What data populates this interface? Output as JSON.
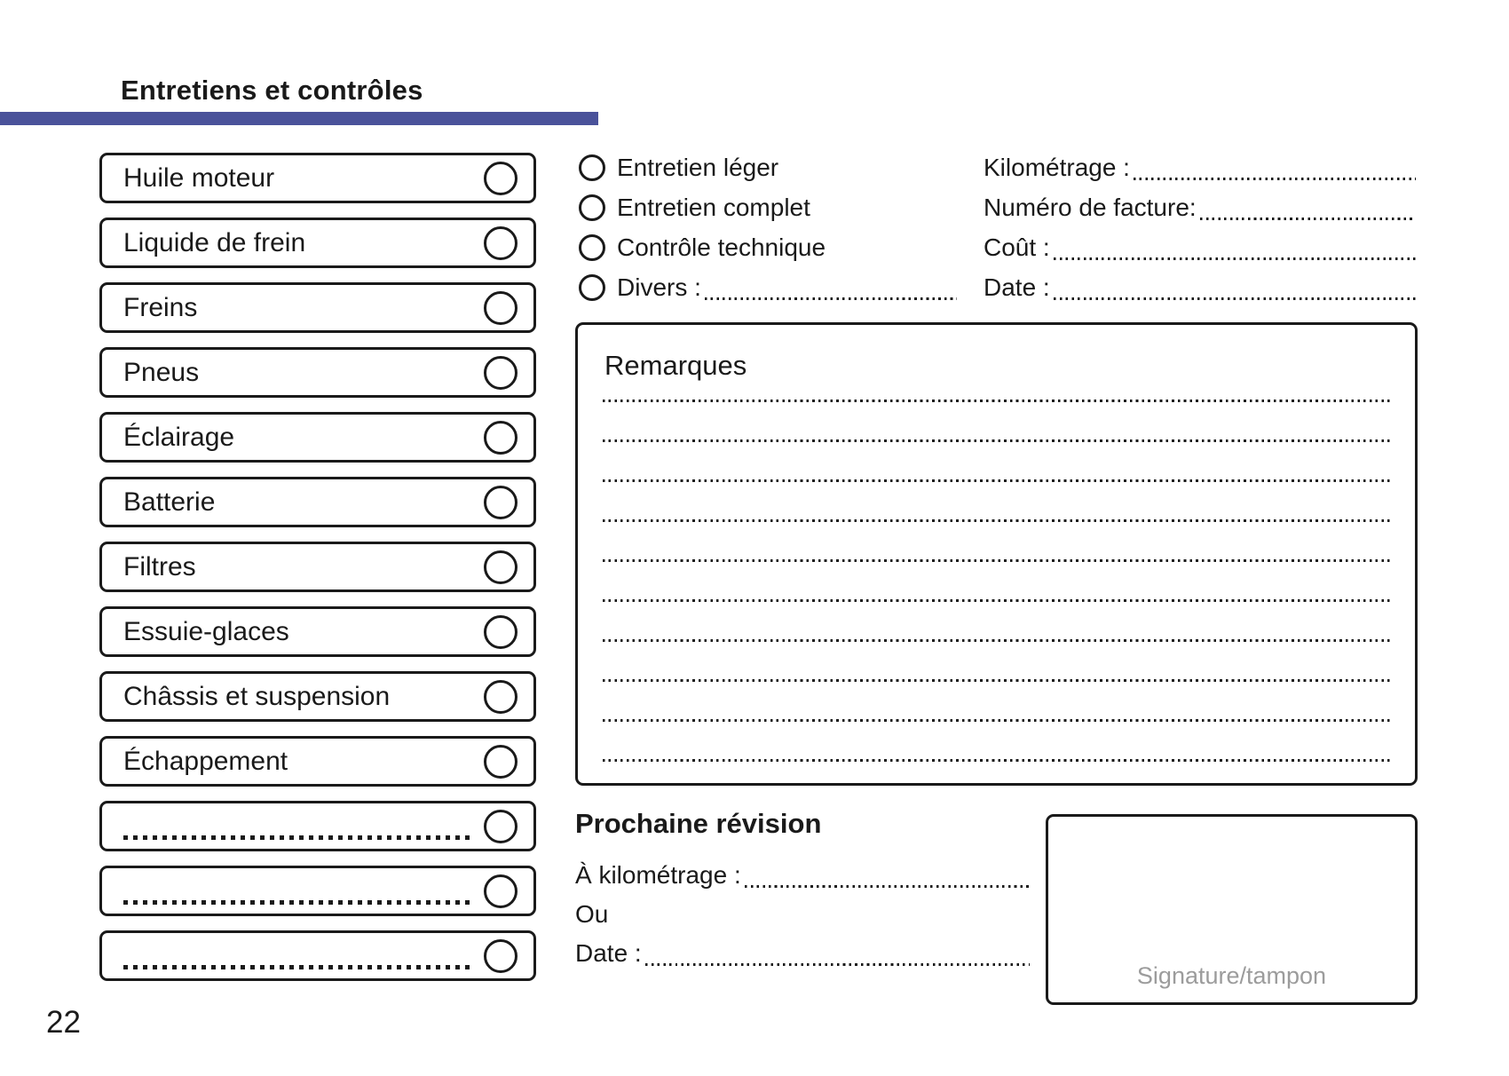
{
  "page": {
    "title": "Entretiens et contrôles",
    "page_number": "22"
  },
  "theme": {
    "accent_color": "#4a529a",
    "ink_color": "#1a1a1a",
    "muted_color": "#9c9c9c"
  },
  "checklist": {
    "items": [
      {
        "label": "Huile moteur",
        "blank": false
      },
      {
        "label": "Liquide de frein",
        "blank": false
      },
      {
        "label": "Freins",
        "blank": false
      },
      {
        "label": "Pneus",
        "blank": false
      },
      {
        "label": "Éclairage",
        "blank": false
      },
      {
        "label": "Batterie",
        "blank": false
      },
      {
        "label": "Filtres",
        "blank": false
      },
      {
        "label": "Essuie-glaces",
        "blank": false
      },
      {
        "label": "Châssis et suspension",
        "blank": false
      },
      {
        "label": "Échappement",
        "blank": false
      },
      {
        "label": "",
        "blank": true
      },
      {
        "label": "",
        "blank": true
      },
      {
        "label": "",
        "blank": true
      }
    ]
  },
  "service_type": {
    "options": [
      {
        "label": "Entretien léger",
        "has_dots": false
      },
      {
        "label": "Entretien complet",
        "has_dots": false
      },
      {
        "label": "Contrôle technique",
        "has_dots": false
      },
      {
        "label": "Divers :",
        "has_dots": true
      }
    ]
  },
  "invoice_fields": {
    "rows": [
      {
        "label": "Kilométrage :"
      },
      {
        "label": "Numéro de facture:"
      },
      {
        "label": "Coût :"
      },
      {
        "label": "Date :"
      }
    ]
  },
  "remarks": {
    "title": "Remarques",
    "line_count": 10
  },
  "next_service": {
    "title": "Prochaine révision",
    "rows": [
      {
        "label": "À kilométrage :",
        "has_dots": true
      },
      {
        "label": "Ou",
        "has_dots": false
      },
      {
        "label": "Date :",
        "has_dots": true
      }
    ]
  },
  "signature": {
    "label": "Signature/tampon"
  }
}
